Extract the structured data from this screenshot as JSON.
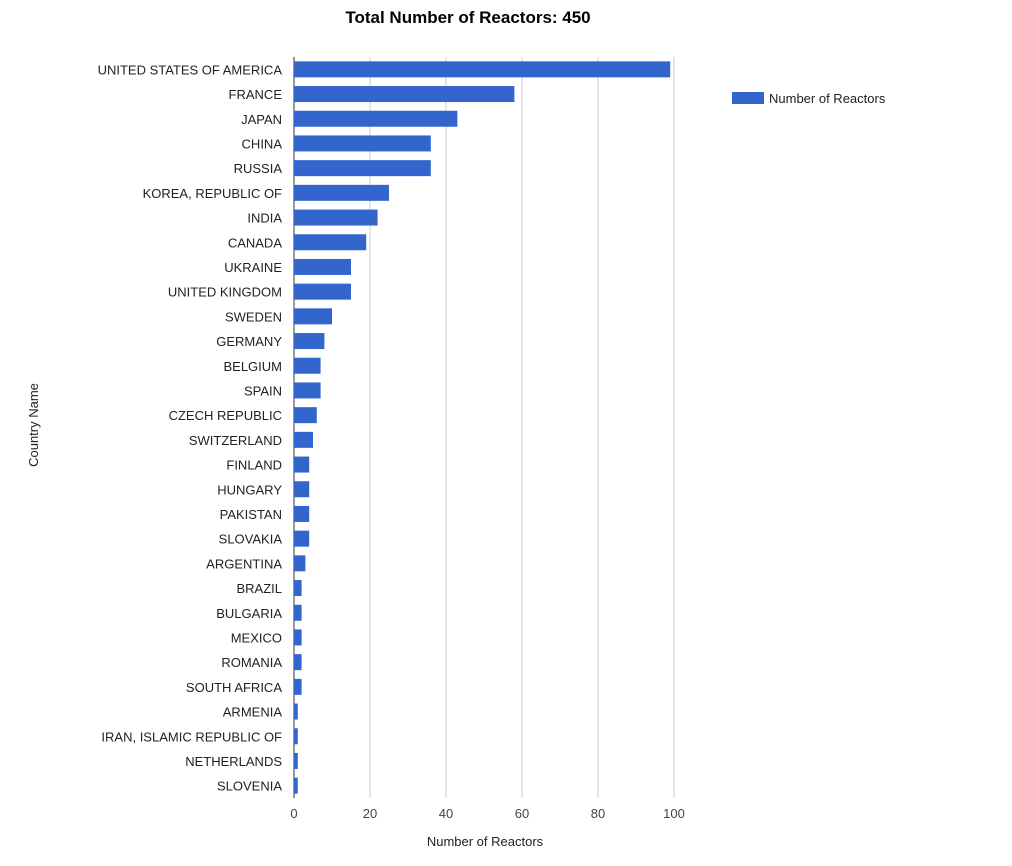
{
  "chart_data": {
    "type": "bar",
    "orientation": "horizontal",
    "title": "Total Number of Reactors: 450",
    "xlabel": "Number of Reactors",
    "ylabel": "Country Name",
    "xlim": [
      0,
      100
    ],
    "x_ticks": [
      "0",
      "20",
      "40",
      "60",
      "80",
      "100"
    ],
    "grid": true,
    "legend_position": "right",
    "bar_color": "#3366cc",
    "categories": [
      "UNITED STATES OF AMERICA",
      "FRANCE",
      "JAPAN",
      "CHINA",
      "RUSSIA",
      "KOREA, REPUBLIC OF",
      "INDIA",
      "CANADA",
      "UKRAINE",
      "UNITED KINGDOM",
      "SWEDEN",
      "GERMANY",
      "BELGIUM",
      "SPAIN",
      "CZECH REPUBLIC",
      "SWITZERLAND",
      "FINLAND",
      "HUNGARY",
      "PAKISTAN",
      "SLOVAKIA",
      "ARGENTINA",
      "BRAZIL",
      "BULGARIA",
      "MEXICO",
      "ROMANIA",
      "SOUTH AFRICA",
      "ARMENIA",
      "IRAN, ISLAMIC REPUBLIC OF",
      "NETHERLANDS",
      "SLOVENIA"
    ],
    "series": [
      {
        "name": "Number of Reactors",
        "values": [
          99,
          58,
          43,
          36,
          36,
          25,
          22,
          19,
          15,
          15,
          10,
          8,
          7,
          7,
          6,
          5,
          4,
          4,
          4,
          4,
          3,
          2,
          2,
          2,
          2,
          2,
          1,
          1,
          1,
          1
        ]
      }
    ]
  }
}
